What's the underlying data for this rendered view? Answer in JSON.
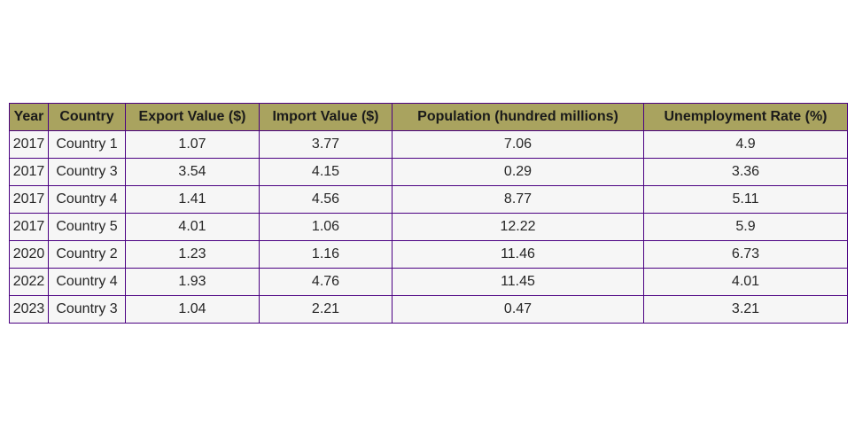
{
  "colors": {
    "header_background": "#a9a35f",
    "cell_background": "#f6f6f6",
    "border": "#4b0082"
  },
  "chart_data": {
    "type": "table",
    "columns": [
      "Year",
      "Country",
      "Export Value ($)",
      "Import Value ($)",
      "Population (hundred millions)",
      "Unemployment Rate (%)"
    ],
    "rows": [
      [
        "2017",
        "Country 1",
        "1.07",
        "3.77",
        "7.06",
        "4.9"
      ],
      [
        "2017",
        "Country 3",
        "3.54",
        "4.15",
        "0.29",
        "3.36"
      ],
      [
        "2017",
        "Country 4",
        "1.41",
        "4.56",
        "8.77",
        "5.11"
      ],
      [
        "2017",
        "Country 5",
        "4.01",
        "1.06",
        "12.22",
        "5.9"
      ],
      [
        "2020",
        "Country 2",
        "1.23",
        "1.16",
        "11.46",
        "6.73"
      ],
      [
        "2022",
        "Country 4",
        "1.93",
        "4.76",
        "11.45",
        "4.01"
      ],
      [
        "2023",
        "Country 3",
        "1.04",
        "2.21",
        "0.47",
        "3.21"
      ]
    ]
  }
}
